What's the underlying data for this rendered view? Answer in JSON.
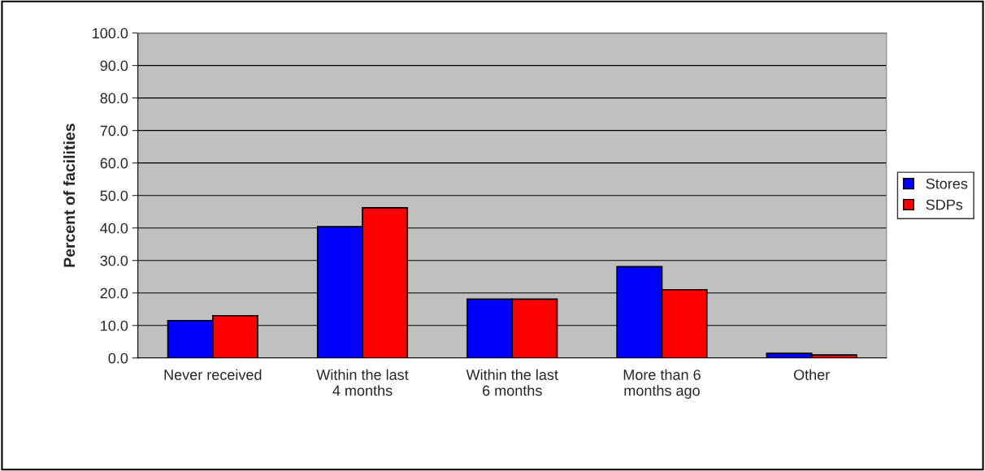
{
  "chart_data": {
    "type": "bar",
    "ylabel": "Percent of facilities",
    "categories": [
      "Never received",
      "Within the last\n4 months",
      "Within the last\n6 months",
      "More than 6\nmonths ago",
      "Other"
    ],
    "series": [
      {
        "name": "Stores",
        "color": "#0000ff",
        "values": [
          11.5,
          40.4,
          18.1,
          28.1,
          1.4
        ]
      },
      {
        "name": "SDPs",
        "color": "#ff0000",
        "values": [
          13.0,
          46.2,
          18.1,
          21.0,
          0.9
        ]
      }
    ],
    "ylim": [
      0,
      100
    ],
    "yticks": [
      {
        "value": 0,
        "label": "0.0"
      },
      {
        "value": 10,
        "label": "10.0"
      },
      {
        "value": 20,
        "label": "20.0"
      },
      {
        "value": 30,
        "label": "30.0"
      },
      {
        "value": 40,
        "label": "40.0"
      },
      {
        "value": 50,
        "label": "50.0"
      },
      {
        "value": 60,
        "label": "60.0"
      },
      {
        "value": 70,
        "label": "70.0"
      },
      {
        "value": 80,
        "label": "80.0"
      },
      {
        "value": 90,
        "label": "90.0"
      },
      {
        "value": 100,
        "label": "100.0"
      }
    ],
    "grid": "y",
    "legend": "right"
  }
}
